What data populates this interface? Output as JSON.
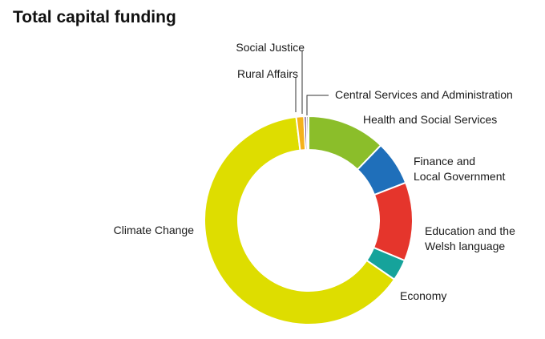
{
  "title": "Total capital funding",
  "chart_data": {
    "type": "pie",
    "title": "Total capital funding",
    "hole": "donut",
    "legend": "none",
    "slices": [
      {
        "name": "Health and Social Services",
        "label_lines": [
          "Health and Social Services"
        ],
        "value": 12.2,
        "color": "#8bbe2a"
      },
      {
        "name": "Finance and Local Government",
        "label_lines": [
          "Finance and",
          "Local Government"
        ],
        "value": 6.9,
        "color": "#1f6fba"
      },
      {
        "name": "Education and the Welsh language",
        "label_lines": [
          "Education and the",
          "Welsh language"
        ],
        "value": 12.2,
        "color": "#e5352c"
      },
      {
        "name": "Economy",
        "label_lines": [
          "Economy"
        ],
        "value": 3.3,
        "color": "#16a39b"
      },
      {
        "name": "Climate Change",
        "label_lines": [
          "Climate Change"
        ],
        "value": 63.5,
        "color": "#dedd00"
      },
      {
        "name": "Rural Affairs",
        "label_lines": [
          "Rural Affairs"
        ],
        "value": 1.2,
        "color": "#f5b21b"
      },
      {
        "name": "Social Justice",
        "label_lines": [
          "Social Justice"
        ],
        "value": 0.4,
        "color": "#5a2f6e"
      },
      {
        "name": "Central Services and Administration",
        "label_lines": [
          "Central Services and Administration"
        ],
        "value": 0.3,
        "color": "#555555"
      }
    ]
  }
}
